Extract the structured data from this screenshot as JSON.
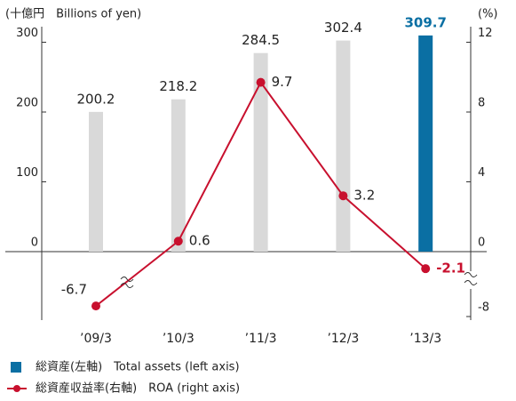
{
  "chart_data": {
    "type": "bar+line",
    "y_label": "(十億円　Billions of yen)",
    "y2_label": "(%)",
    "categories": [
      "’09/3",
      "’10/3",
      "’11/3",
      "’12/3",
      "’13/3"
    ],
    "ylim": [
      0,
      300
    ],
    "yticks": [
      0,
      100,
      200,
      300
    ],
    "y2lim": [
      -8,
      12
    ],
    "y2ticks": [
      -8,
      0,
      4,
      8,
      12
    ],
    "series": [
      {
        "name": "総資産(左軸)　Total assets (left axis)",
        "type": "bar",
        "color": "#0a6fa3",
        "colors": [
          "#d9d9d9",
          "#d9d9d9",
          "#d9d9d9",
          "#d9d9d9",
          "#0a6fa3"
        ],
        "values": [
          200.2,
          218.2,
          284.5,
          302.4,
          309.7
        ]
      },
      {
        "name": "総資産収益率(右軸)　ROA (right axis)",
        "type": "line",
        "axis": "y2",
        "color": "#c8102e",
        "values": [
          -6.7,
          0.6,
          9.7,
          3.2,
          -2.1
        ]
      }
    ]
  }
}
